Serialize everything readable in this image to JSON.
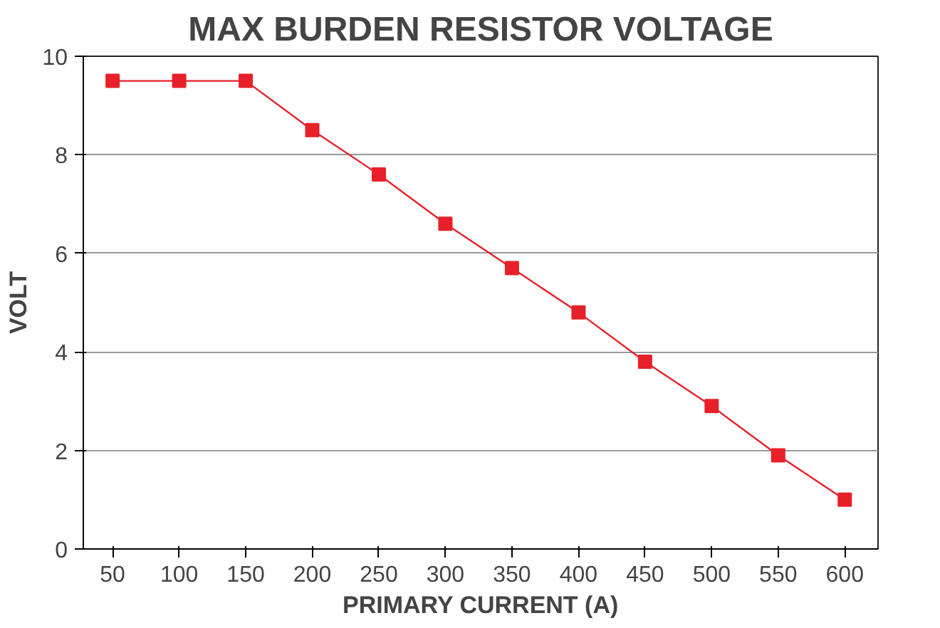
{
  "chart_data": {
    "type": "line",
    "title": "MAX BURDEN RESISTOR VOLTAGE",
    "xlabel": "PRIMARY CURRENT (A)",
    "ylabel": "VOLT",
    "x": [
      50,
      100,
      150,
      200,
      250,
      300,
      350,
      400,
      450,
      500,
      550,
      600
    ],
    "series": [
      {
        "color": "#e8202a",
        "values": [
          9.5,
          9.5,
          9.5,
          8.5,
          7.6,
          6.6,
          5.7,
          4.8,
          3.8,
          2.9,
          1.9,
          1.0
        ]
      }
    ],
    "xlim": [
      28,
      625
    ],
    "xticks": [
      50,
      100,
      150,
      200,
      250,
      300,
      350,
      400,
      450,
      500,
      550,
      600
    ],
    "ylim": [
      0,
      10
    ],
    "yticks": [
      0,
      2,
      4,
      6,
      8,
      10
    ],
    "grid": "y",
    "marker": "square",
    "line_style": "solid"
  }
}
